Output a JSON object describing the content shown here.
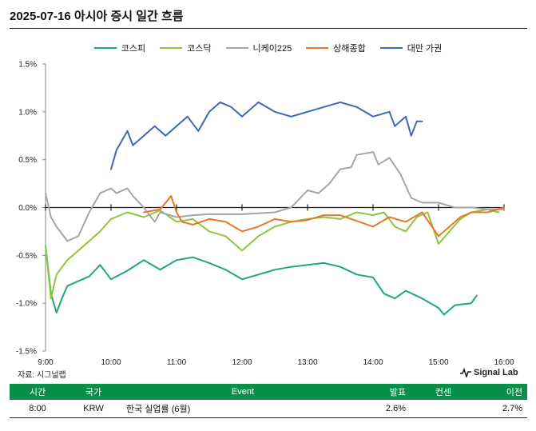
{
  "header": {
    "title": "2025-07-16 아시아 증시 일간 흐름"
  },
  "legend": [
    {
      "label": "코스피",
      "color": "#1aaa7a"
    },
    {
      "label": "코스닥",
      "color": "#8cc63f"
    },
    {
      "label": "니케이225",
      "color": "#a6a6a6"
    },
    {
      "label": "상해종합",
      "color": "#e8772e"
    },
    {
      "label": "대만 가권",
      "color": "#3f67b5"
    }
  ],
  "source": "자료: 시그널랩",
  "brand": "Signal Lab",
  "table": {
    "headers": [
      "시간",
      "국가",
      "Event",
      "발표",
      "컨센",
      "이전"
    ],
    "rows": [
      {
        "time": "8:00",
        "country": "KRW",
        "event": "한국 실업률 (6월)",
        "actual": "2.6%",
        "consensus": "",
        "previous": "2.7%"
      }
    ]
  },
  "chart_data": {
    "type": "line",
    "title": "2025-07-16 아시아 증시 일간 흐름",
    "xlabel": "",
    "ylabel": "",
    "x_ticks": [
      "9:00",
      "10:00",
      "11:00",
      "12:00",
      "13:00",
      "14:00",
      "15:00",
      "16:00"
    ],
    "y_ticks": [
      "1.5%",
      "1.0%",
      "0.5%",
      "0.0%",
      "-0.5%",
      "-1.0%",
      "-1.5%"
    ],
    "xlim": [
      "9:00",
      "16:00"
    ],
    "ylim": [
      -1.5,
      1.5
    ],
    "legend_position": "top",
    "series": [
      {
        "name": "코스피",
        "color": "#1aaa7a",
        "x": [
          "9:00",
          "9:05",
          "9:10",
          "9:15",
          "9:20",
          "9:30",
          "9:40",
          "9:50",
          "10:00",
          "10:15",
          "10:30",
          "10:45",
          "11:00",
          "11:15",
          "11:30",
          "11:45",
          "12:00",
          "12:15",
          "12:30",
          "12:45",
          "13:00",
          "13:15",
          "13:30",
          "13:45",
          "14:00",
          "14:10",
          "14:20",
          "14:30",
          "14:45",
          "15:00",
          "15:05",
          "15:15",
          "15:30",
          "15:35"
        ],
        "values": [
          -0.4,
          -0.9,
          -1.1,
          -0.95,
          -0.82,
          -0.77,
          -0.72,
          -0.6,
          -0.75,
          -0.66,
          -0.55,
          -0.65,
          -0.55,
          -0.52,
          -0.58,
          -0.65,
          -0.75,
          -0.7,
          -0.65,
          -0.62,
          -0.6,
          -0.58,
          -0.62,
          -0.7,
          -0.73,
          -0.9,
          -0.95,
          -0.87,
          -0.95,
          -1.05,
          -1.12,
          -1.02,
          -1.0,
          -0.92
        ]
      },
      {
        "name": "코스닥",
        "color": "#8cc63f",
        "x": [
          "9:00",
          "9:05",
          "9:10",
          "9:20",
          "9:30",
          "9:40",
          "9:50",
          "10:00",
          "10:15",
          "10:30",
          "10:45",
          "11:00",
          "11:15",
          "11:30",
          "11:45",
          "12:00",
          "12:15",
          "12:30",
          "12:45",
          "13:00",
          "13:15",
          "13:30",
          "13:45",
          "14:00",
          "14:10",
          "14:20",
          "14:30",
          "14:40",
          "14:50",
          "15:00",
          "15:10",
          "15:20",
          "15:30",
          "15:45",
          "15:55"
        ],
        "values": [
          -0.4,
          -0.95,
          -0.7,
          -0.55,
          -0.45,
          -0.35,
          -0.25,
          -0.12,
          -0.05,
          -0.1,
          -0.03,
          -0.15,
          -0.12,
          -0.25,
          -0.3,
          -0.45,
          -0.3,
          -0.2,
          -0.15,
          -0.12,
          -0.1,
          -0.12,
          -0.05,
          -0.08,
          -0.05,
          -0.2,
          -0.25,
          -0.1,
          -0.05,
          -0.38,
          -0.25,
          -0.12,
          -0.05,
          -0.02,
          -0.05
        ]
      },
      {
        "name": "니케이225",
        "color": "#a6a6a6",
        "x": [
          "9:00",
          "9:05",
          "9:10",
          "9:20",
          "9:30",
          "9:40",
          "9:50",
          "10:00",
          "10:05",
          "10:15",
          "10:20",
          "10:30",
          "10:40",
          "10:45",
          "11:00",
          "11:15",
          "11:30",
          "12:00",
          "12:30",
          "12:45",
          "13:00",
          "13:10",
          "13:20",
          "13:30",
          "13:40",
          "13:45",
          "14:00",
          "14:05",
          "14:15",
          "14:25",
          "14:35",
          "14:45",
          "15:00",
          "15:15",
          "15:30",
          "15:45",
          "16:00"
        ],
        "values": [
          0.15,
          -0.1,
          -0.2,
          -0.35,
          -0.3,
          -0.05,
          0.15,
          0.2,
          0.15,
          0.2,
          0.12,
          0.0,
          -0.15,
          -0.05,
          -0.1,
          -0.08,
          -0.07,
          -0.07,
          -0.05,
          0.0,
          0.18,
          0.15,
          0.25,
          0.4,
          0.42,
          0.55,
          0.58,
          0.45,
          0.52,
          0.35,
          0.1,
          0.05,
          0.05,
          0.0,
          0.0,
          -0.02,
          -0.02
        ]
      },
      {
        "name": "상해종합",
        "color": "#e8772e",
        "x": [
          "10:30",
          "10:45",
          "10:55",
          "11:00",
          "11:05",
          "11:15",
          "11:30",
          "11:45",
          "12:00",
          "12:15",
          "12:30",
          "12:45",
          "13:00",
          "13:15",
          "13:30",
          "14:00",
          "14:15",
          "14:30",
          "14:45",
          "15:00",
          "15:10",
          "15:20",
          "15:30",
          "15:45",
          "16:00"
        ],
        "values": [
          -0.05,
          -0.02,
          0.12,
          -0.05,
          -0.15,
          -0.18,
          -0.12,
          -0.15,
          -0.25,
          -0.2,
          -0.12,
          -0.15,
          -0.13,
          -0.08,
          -0.08,
          -0.2,
          -0.1,
          -0.15,
          -0.05,
          -0.3,
          -0.2,
          -0.1,
          -0.05,
          -0.05,
          0.0
        ]
      },
      {
        "name": "대만 가권",
        "color": "#3f67b5",
        "x": [
          "10:00",
          "10:05",
          "10:15",
          "10:20",
          "10:25",
          "10:30",
          "10:40",
          "10:50",
          "11:00",
          "11:10",
          "11:20",
          "11:30",
          "11:40",
          "11:50",
          "12:00",
          "12:15",
          "12:30",
          "12:45",
          "13:00",
          "13:15",
          "13:30",
          "13:45",
          "14:00",
          "14:15",
          "14:20",
          "14:30",
          "14:35",
          "14:40",
          "14:45"
        ],
        "values": [
          0.4,
          0.6,
          0.8,
          0.65,
          0.7,
          0.75,
          0.85,
          0.75,
          0.85,
          0.95,
          0.8,
          1.0,
          1.1,
          1.05,
          0.95,
          1.1,
          1.0,
          0.95,
          1.0,
          1.05,
          1.1,
          1.05,
          0.95,
          1.0,
          0.85,
          0.95,
          0.75,
          0.9,
          0.9
        ]
      }
    ]
  }
}
